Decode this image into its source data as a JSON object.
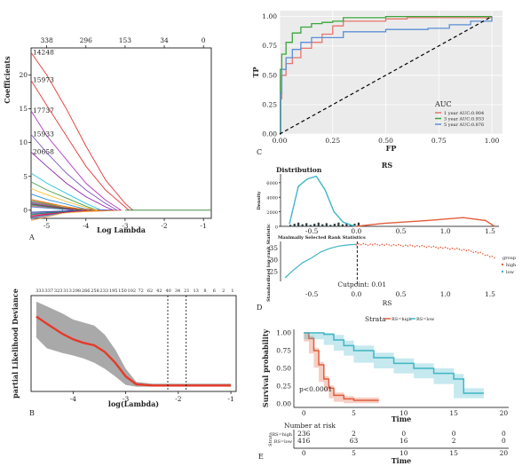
{
  "panels": {
    "A": {
      "label": "A",
      "xlabel": "Log Lambda",
      "ylabel": "Coefficients",
      "xticks": [
        "-5",
        "-4",
        "-3",
        "-2",
        "-1"
      ],
      "yticks": [
        "0",
        "5",
        "10",
        "15",
        "20"
      ],
      "top_ticks": [
        "338",
        "296",
        "153",
        "34",
        "0"
      ],
      "left_labels": [
        "14248",
        "15973",
        "17737",
        "15933",
        "20658"
      ]
    },
    "B": {
      "label": "B",
      "xlabel": "log(Lambda)",
      "ylabel": "partial Likelihood Deviance",
      "xticks": [
        "-4",
        "-3",
        "-2",
        "-1"
      ],
      "top_ticks": [
        "333",
        "337",
        "323",
        "313",
        "298",
        "266",
        "258",
        "233",
        "195",
        "150",
        "102",
        "72",
        "62",
        "42",
        "40",
        "34",
        "21",
        "13",
        "8",
        "6",
        "2",
        "1"
      ]
    },
    "C": {
      "label": "C",
      "xlabel": "FP",
      "ylabel": "TP",
      "xticks": [
        "0.00",
        "0.25",
        "0.50",
        "0.75",
        "1.00"
      ],
      "yticks": [
        "0.00",
        "0.25",
        "0.50",
        "0.75",
        "1.00"
      ],
      "legend_title": "AUC",
      "legend": [
        "1 year AUC:0.904",
        "3 year AUC:0.933",
        "5 year AUC:0.876"
      ]
    },
    "D": {
      "label": "D",
      "title": "RS",
      "distribution_title": "Distribution",
      "density_label": "Density",
      "density_yticks": [
        "0",
        "2000",
        "4000",
        "6000"
      ],
      "stat_title": "Maximally Selected Rank Statistics",
      "stat_ylabel": "Standardized log-rank Statistic",
      "stat_yticks": [
        "25",
        "30",
        "35"
      ],
      "xticks": [
        "-0.5",
        "0.0",
        "0.5",
        "1.0",
        "1.5"
      ],
      "xlabel": "RS",
      "cutpoint": "Cutpoint: 0.01",
      "legend_title": "group",
      "legend": [
        "high",
        "low"
      ]
    },
    "E": {
      "label": "E",
      "strata_label": "Strata",
      "strata": [
        "RS=high",
        "RS=low"
      ],
      "ylabel": "Survival probability",
      "yticks": [
        "0.00",
        "0.25",
        "0.50",
        "0.75",
        "1.00"
      ],
      "xticks": [
        "0",
        "5",
        "10",
        "15",
        "20"
      ],
      "xlabel": "Time",
      "pvalue": "p<0.0001",
      "risk_title": "Number at risk",
      "risk_axis_title": "Strata",
      "risk_rows": [
        {
          "name": "RS=high",
          "values": [
            "236",
            "2",
            "0",
            "0",
            "0"
          ]
        },
        {
          "name": "RS=low",
          "values": [
            "416",
            "63",
            "16",
            "2",
            "0"
          ]
        }
      ],
      "risk_xlabel": "Time"
    }
  },
  "colors": {
    "roc_1y": "#e8746b",
    "roc_3y": "#3aa63a",
    "roc_5y": "#5b8fd6",
    "high": "#e25c3b",
    "low": "#3fb5c6",
    "cv_line": "#e53a2a",
    "cv_band": "#9a9a9a"
  },
  "chart_data": [
    {
      "panel": "A",
      "type": "line",
      "title": "",
      "xlabel": "Log Lambda",
      "ylabel": "Coefficients",
      "xlim": [
        -5.4,
        -0.8
      ],
      "ylim": [
        -1.2,
        24
      ],
      "series": [
        {
          "name": "14248",
          "x": [
            -5.4,
            -5.0,
            -4.5,
            -4.0,
            -3.5,
            -3.0,
            -2.8
          ],
          "y": [
            23.3,
            20.0,
            15.0,
            9.5,
            4.5,
            1.0,
            0
          ]
        },
        {
          "name": "15973",
          "x": [
            -5.4,
            -5.0,
            -4.5,
            -4.0,
            -3.5,
            -3.0,
            -2.9
          ],
          "y": [
            19.2,
            15.5,
            11.0,
            6.5,
            3.0,
            0.5,
            0
          ]
        },
        {
          "name": "17737",
          "x": [
            -5.4,
            -5.0,
            -4.5,
            -4.0,
            -3.5,
            -3.1
          ],
          "y": [
            14.7,
            11.0,
            7.5,
            4.0,
            1.5,
            0
          ]
        },
        {
          "name": "15933",
          "x": [
            -5.4,
            -5.0,
            -4.5,
            -4.0,
            -3.5,
            -3.2
          ],
          "y": [
            11.2,
            8.5,
            5.5,
            3.0,
            1.0,
            0
          ]
        },
        {
          "name": "20658",
          "x": [
            -5.4,
            -5.0,
            -4.5,
            -4.0,
            -3.5,
            -3.3
          ],
          "y": [
            8.6,
            6.5,
            4.0,
            2.0,
            0.5,
            0
          ]
        },
        {
          "name": "",
          "x": [
            -5.4,
            -5.0,
            -4.5,
            -4.0,
            -3.6
          ],
          "y": [
            5.5,
            4.0,
            2.5,
            1.0,
            0
          ]
        },
        {
          "name": "",
          "x": [
            -5.4,
            -5.0,
            -4.5,
            -4.0,
            -3.7
          ],
          "y": [
            4.2,
            3.0,
            1.8,
            0.6,
            0
          ]
        },
        {
          "name": "",
          "x": [
            -5.4,
            -5.0,
            -4.5,
            -4.0,
            -3.7
          ],
          "y": [
            3.2,
            2.3,
            1.3,
            0.4,
            0
          ]
        },
        {
          "name": "",
          "x": [
            -5.4,
            -5.0,
            -4.5,
            -3.9
          ],
          "y": [
            2.4,
            1.6,
            0.9,
            0
          ]
        },
        {
          "name": "",
          "x": [
            -5.4,
            -5.0,
            -4.5,
            -3.9
          ],
          "y": [
            1.6,
            1.1,
            0.5,
            0
          ]
        },
        {
          "name": "",
          "x": [
            -5.4,
            -5.0,
            -4.5,
            -4.1
          ],
          "y": [
            -0.6,
            -0.4,
            -0.2,
            0
          ]
        },
        {
          "name": "",
          "x": [
            -5.4,
            -5.0,
            -4.5,
            -4.0
          ],
          "y": [
            -0.9,
            -0.6,
            -0.3,
            0
          ]
        },
        {
          "name": "",
          "x": [
            -5.4,
            -5.0,
            -4.5,
            -4.2
          ],
          "y": [
            0.9,
            0.6,
            0.3,
            0
          ]
        },
        {
          "name": "",
          "x": [
            -5.4,
            -5.0,
            -4.5,
            -4.3
          ],
          "y": [
            -0.3,
            -0.2,
            -0.1,
            0
          ]
        }
      ]
    },
    {
      "panel": "B",
      "type": "line",
      "title": "",
      "xlabel": "log(Lambda)",
      "ylabel": "partial Likelihood Deviance",
      "xlim": [
        -4.8,
        -0.9
      ],
      "ylim": [
        4,
        20
      ],
      "series": [
        {
          "name": "",
          "x": [
            -4.7,
            -4.5,
            -4.2,
            -4.0,
            -3.8,
            -3.6,
            -3.4,
            -3.2,
            -3.0,
            -2.8,
            -2.5,
            -2.2,
            -2.0,
            -1.5,
            -1.0
          ],
          "y": [
            16.5,
            15.3,
            13.6,
            12.7,
            12.1,
            11.7,
            10.6,
            8.8,
            6.5,
            5.2,
            5.0,
            5.0,
            5.0,
            5.0,
            5.0
          ],
          "lower": [
            13.0,
            11.2,
            10.4,
            10.0,
            9.5,
            8.8,
            7.8,
            6.5,
            5.1,
            4.8,
            4.8,
            4.8,
            4.8,
            4.8,
            4.8
          ],
          "upper": [
            19.0,
            18.2,
            17.0,
            16.0,
            15.5,
            15.0,
            13.5,
            11.0,
            7.8,
            5.6,
            5.3,
            5.3,
            5.3,
            5.3,
            5.3
          ]
        }
      ],
      "vlines": [
        -2.2,
        -1.85
      ]
    },
    {
      "panel": "C",
      "type": "line",
      "title": "",
      "xlabel": "FP",
      "ylabel": "TP",
      "xlim": [
        0,
        1.05
      ],
      "ylim": [
        0,
        1.05
      ],
      "series": [
        {
          "name": "1 year AUC:0.904",
          "x": [
            0,
            0.005,
            0.01,
            0.03,
            0.06,
            0.1,
            0.15,
            0.2,
            0.25,
            0.3,
            0.5,
            0.6,
            1.0
          ],
          "y": [
            0,
            0.3,
            0.5,
            0.6,
            0.65,
            0.73,
            0.78,
            0.85,
            0.92,
            0.96,
            0.98,
            0.99,
            1.0
          ]
        },
        {
          "name": "3 year AUC:0.933",
          "x": [
            0,
            0.003,
            0.01,
            0.03,
            0.06,
            0.1,
            0.15,
            0.2,
            0.25,
            0.3,
            0.5,
            0.6,
            1.0
          ],
          "y": [
            0,
            0.55,
            0.68,
            0.78,
            0.86,
            0.91,
            0.94,
            0.95,
            0.96,
            0.99,
            1.0,
            1.0,
            1.0
          ]
        },
        {
          "name": "5 year AUC:0.876",
          "x": [
            0,
            0.005,
            0.01,
            0.03,
            0.06,
            0.1,
            0.15,
            0.3,
            0.5,
            0.7,
            0.8,
            0.9,
            1.0
          ],
          "y": [
            0,
            0.35,
            0.55,
            0.65,
            0.72,
            0.78,
            0.82,
            0.87,
            0.89,
            0.9,
            0.93,
            0.96,
            1.0
          ]
        }
      ],
      "reference": {
        "x": [
          0,
          1
        ],
        "y": [
          0,
          1
        ]
      }
    },
    {
      "panel": "D-density",
      "type": "area",
      "xlabel": "RS",
      "ylabel": "Density",
      "xlim": [
        -0.85,
        1.6
      ],
      "ylim": [
        0,
        7200
      ],
      "series": [
        {
          "name": "low",
          "x": [
            -0.75,
            -0.65,
            -0.55,
            -0.45,
            -0.35,
            -0.25,
            -0.15,
            -0.05,
            0.0
          ],
          "y": [
            300,
            5500,
            6500,
            6900,
            5000,
            2000,
            600,
            150,
            0
          ]
        },
        {
          "name": "high",
          "x": [
            0.0,
            0.3,
            0.8,
            1.2,
            1.45,
            1.55
          ],
          "y": [
            0,
            400,
            800,
            1200,
            800,
            0
          ]
        }
      ]
    },
    {
      "panel": "D-stat",
      "type": "scatter",
      "title": "Maximally Selected Rank Statistics",
      "xlabel": "RS",
      "ylabel": "Standardized log-rank Statistic",
      "xlim": [
        -0.85,
        1.6
      ],
      "ylim": [
        21,
        38
      ],
      "series": [
        {
          "name": "low",
          "x": [
            -0.8,
            -0.7,
            -0.6,
            -0.5,
            -0.4,
            -0.3,
            -0.2,
            -0.1,
            0.0
          ],
          "y": [
            22.5,
            26.0,
            29.0,
            31.0,
            33.5,
            35.0,
            36.0,
            36.5,
            36.8
          ]
        },
        {
          "name": "high",
          "x": [
            0.0,
            0.2,
            0.4,
            0.6,
            0.8,
            1.0,
            1.2,
            1.4,
            1.55
          ],
          "y": [
            36.8,
            36.7,
            36.5,
            36.2,
            35.8,
            35.2,
            34.5,
            33.0,
            31.0
          ]
        }
      ],
      "cutpoint": 0.01
    },
    {
      "panel": "E",
      "type": "line",
      "title": "",
      "xlabel": "Time",
      "ylabel": "Survival probability",
      "xlim": [
        -1,
        20.5
      ],
      "ylim": [
        -0.05,
        1.05
      ],
      "series": [
        {
          "name": "RS=high",
          "x": [
            0,
            0.5,
            1,
            1.5,
            2,
            2.5,
            3,
            4,
            5,
            7.5
          ],
          "y": [
            1.0,
            0.92,
            0.75,
            0.55,
            0.35,
            0.22,
            0.12,
            0.07,
            0.05,
            0.05
          ]
        },
        {
          "name": "RS=low",
          "x": [
            0,
            2,
            3,
            4,
            5,
            7,
            9,
            11,
            13,
            15,
            16,
            18
          ],
          "y": [
            1.0,
            0.98,
            0.9,
            0.82,
            0.75,
            0.65,
            0.57,
            0.5,
            0.43,
            0.35,
            0.15,
            0.15
          ]
        }
      ]
    }
  ]
}
